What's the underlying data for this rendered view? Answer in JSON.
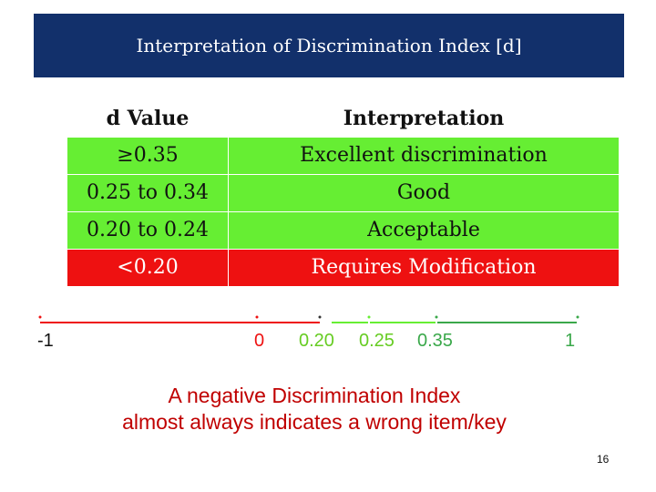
{
  "title": "Interpretation of  Discrimination Index [d]",
  "table": {
    "headers": [
      "d Value",
      "Interpretation"
    ],
    "rows": [
      {
        "value": "≥0.35",
        "interpretation": "Excellent discrimination",
        "status": "green"
      },
      {
        "value": "0.25 to 0.34",
        "interpretation": "Good",
        "status": "green"
      },
      {
        "value": "0.20 to 0.24",
        "interpretation": "Acceptable",
        "status": "green"
      },
      {
        "value": "<0.20",
        "interpretation": "Requires Modification",
        "status": "red"
      }
    ]
  },
  "scale": {
    "labels": [
      "-1",
      "0",
      "0.20",
      "0.25",
      "0.35",
      "1"
    ],
    "colors": {
      "negative": "#ee1111",
      "low": "#66ee33",
      "high": "#3aa84a"
    }
  },
  "note": {
    "line1": "A negative Discrimination Index",
    "line2": "almost always indicates a wrong item/key"
  },
  "page_number": "16",
  "colors": {
    "title_bg": "#12306b",
    "green": "#66ee33",
    "red": "#ee1111",
    "note": "#c00000"
  }
}
